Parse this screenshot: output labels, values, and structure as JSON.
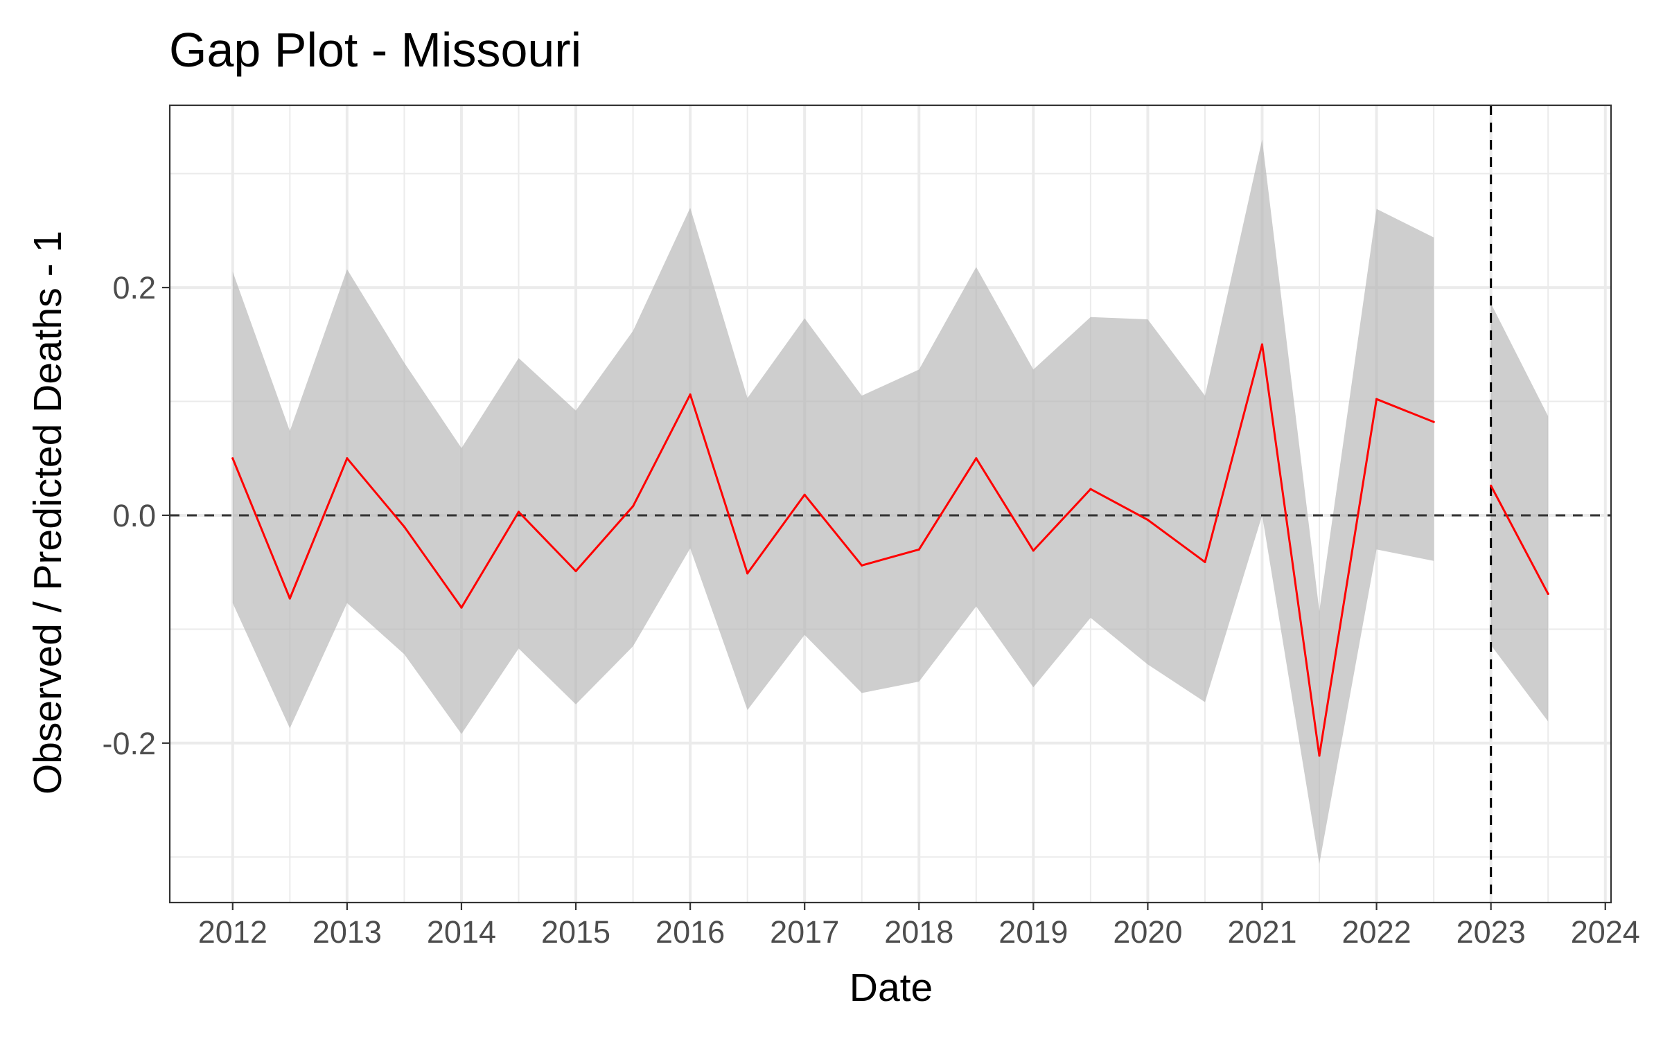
{
  "chart_data": {
    "type": "line",
    "title": "Gap Plot - Missouri",
    "xlabel": "Date",
    "ylabel": "Observed / Predicted Deaths - 1",
    "xlim": [
      2011.45,
      2024.05
    ],
    "ylim": [
      -0.34,
      0.36
    ],
    "x_ticks": [
      2012,
      2013,
      2014,
      2015,
      2016,
      2017,
      2018,
      2019,
      2020,
      2021,
      2022,
      2023,
      2024
    ],
    "x_tick_labels": [
      "2012",
      "2013",
      "2014",
      "2015",
      "2016",
      "2017",
      "2018",
      "2019",
      "2020",
      "2021",
      "2022",
      "2023",
      "2024"
    ],
    "y_ticks": [
      -0.2,
      0.0,
      0.2
    ],
    "y_tick_labels": [
      "-0.2",
      "0.0",
      "0.2"
    ],
    "grid": true,
    "reference_hline": 0.0,
    "reference_vline": 2023.0,
    "colors": {
      "line": "#ff0000",
      "band": "#b3b3b3",
      "grid": "#ebebeb",
      "reference": "#333333"
    },
    "series": [
      {
        "x": [
          2012.0,
          2012.5,
          2013.0,
          2013.5,
          2014.0,
          2014.5,
          2015.0,
          2015.5,
          2016.0,
          2016.5,
          2017.0,
          2017.5,
          2018.0,
          2018.5,
          2019.0,
          2019.5,
          2020.0,
          2020.5,
          2021.0,
          2021.5,
          2022.0,
          2022.5
        ],
        "y": [
          0.05,
          -0.073,
          0.05,
          -0.01,
          -0.081,
          0.003,
          -0.049,
          0.008,
          0.106,
          -0.051,
          0.018,
          -0.044,
          -0.03,
          0.05,
          -0.031,
          0.023,
          -0.004,
          -0.041,
          0.15,
          -0.211,
          0.102,
          0.082
        ],
        "lower": [
          -0.077,
          -0.187,
          -0.077,
          -0.122,
          -0.192,
          -0.117,
          -0.166,
          -0.115,
          -0.029,
          -0.171,
          -0.105,
          -0.156,
          -0.146,
          -0.08,
          -0.151,
          -0.09,
          -0.131,
          -0.164,
          0.0,
          -0.306,
          -0.03,
          -0.04
        ],
        "upper": [
          0.214,
          0.074,
          0.216,
          0.134,
          0.059,
          0.138,
          0.092,
          0.162,
          0.27,
          0.103,
          0.173,
          0.105,
          0.128,
          0.218,
          0.128,
          0.174,
          0.172,
          0.105,
          0.33,
          -0.084,
          0.269,
          0.244
        ]
      },
      {
        "x": [
          2023.0,
          2023.5
        ],
        "y": [
          0.026,
          -0.069
        ],
        "lower": [
          -0.114,
          -0.181
        ],
        "upper": [
          0.186,
          0.087
        ]
      }
    ]
  }
}
